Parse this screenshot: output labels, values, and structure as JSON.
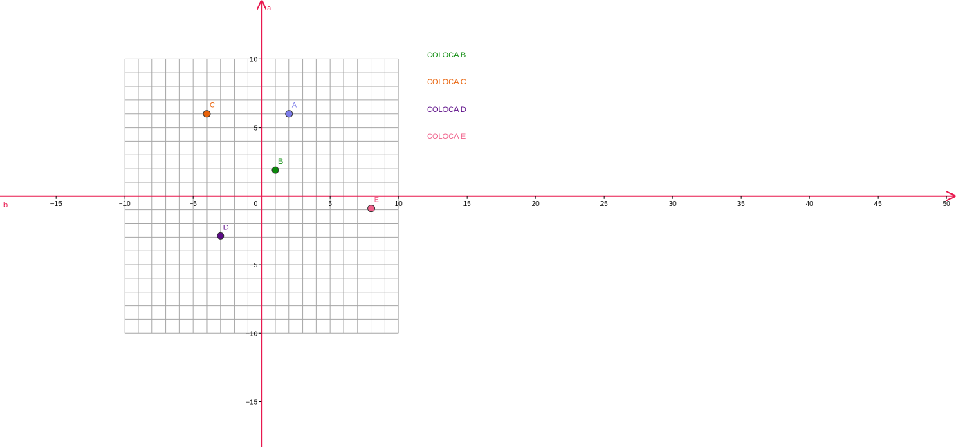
{
  "chart_data": {
    "type": "scatter",
    "x_axis_name": "b",
    "y_axis_name": "a",
    "xlim": [
      -19.1,
      50.7
    ],
    "ylim": [
      -18.3,
      14.3
    ],
    "x_ticks": [
      -15,
      -10,
      -5,
      5,
      10,
      15,
      20,
      25,
      30,
      35,
      40,
      45,
      50
    ],
    "y_ticks": [
      10,
      5,
      -5,
      -10,
      -15
    ],
    "origin_label": "0",
    "grid": {
      "shown": true,
      "x_range": [
        -10,
        10
      ],
      "y_range": [
        -10,
        10
      ],
      "step": 1
    },
    "axis_color": "#e8194f",
    "points": [
      {
        "label": "A",
        "x": 2,
        "y": 6,
        "color": "#7b7be8"
      },
      {
        "label": "B",
        "x": 1,
        "y": 1.9,
        "color": "#0a8a0a"
      },
      {
        "label": "C",
        "x": -4,
        "y": 6,
        "color": "#e8620a"
      },
      {
        "label": "D",
        "x": -3,
        "y": -2.9,
        "color": "#5b0a87"
      },
      {
        "label": "E",
        "x": 8,
        "y": -0.9,
        "color": "#f0608a"
      }
    ]
  },
  "buttons": [
    {
      "label": "COLOCA B",
      "color": "#0a8a0a"
    },
    {
      "label": "COLOCA C",
      "color": "#e8620a"
    },
    {
      "label": "COLOCA D",
      "color": "#5b0a87"
    },
    {
      "label": "COLOCA E",
      "color": "#f0608a"
    }
  ]
}
